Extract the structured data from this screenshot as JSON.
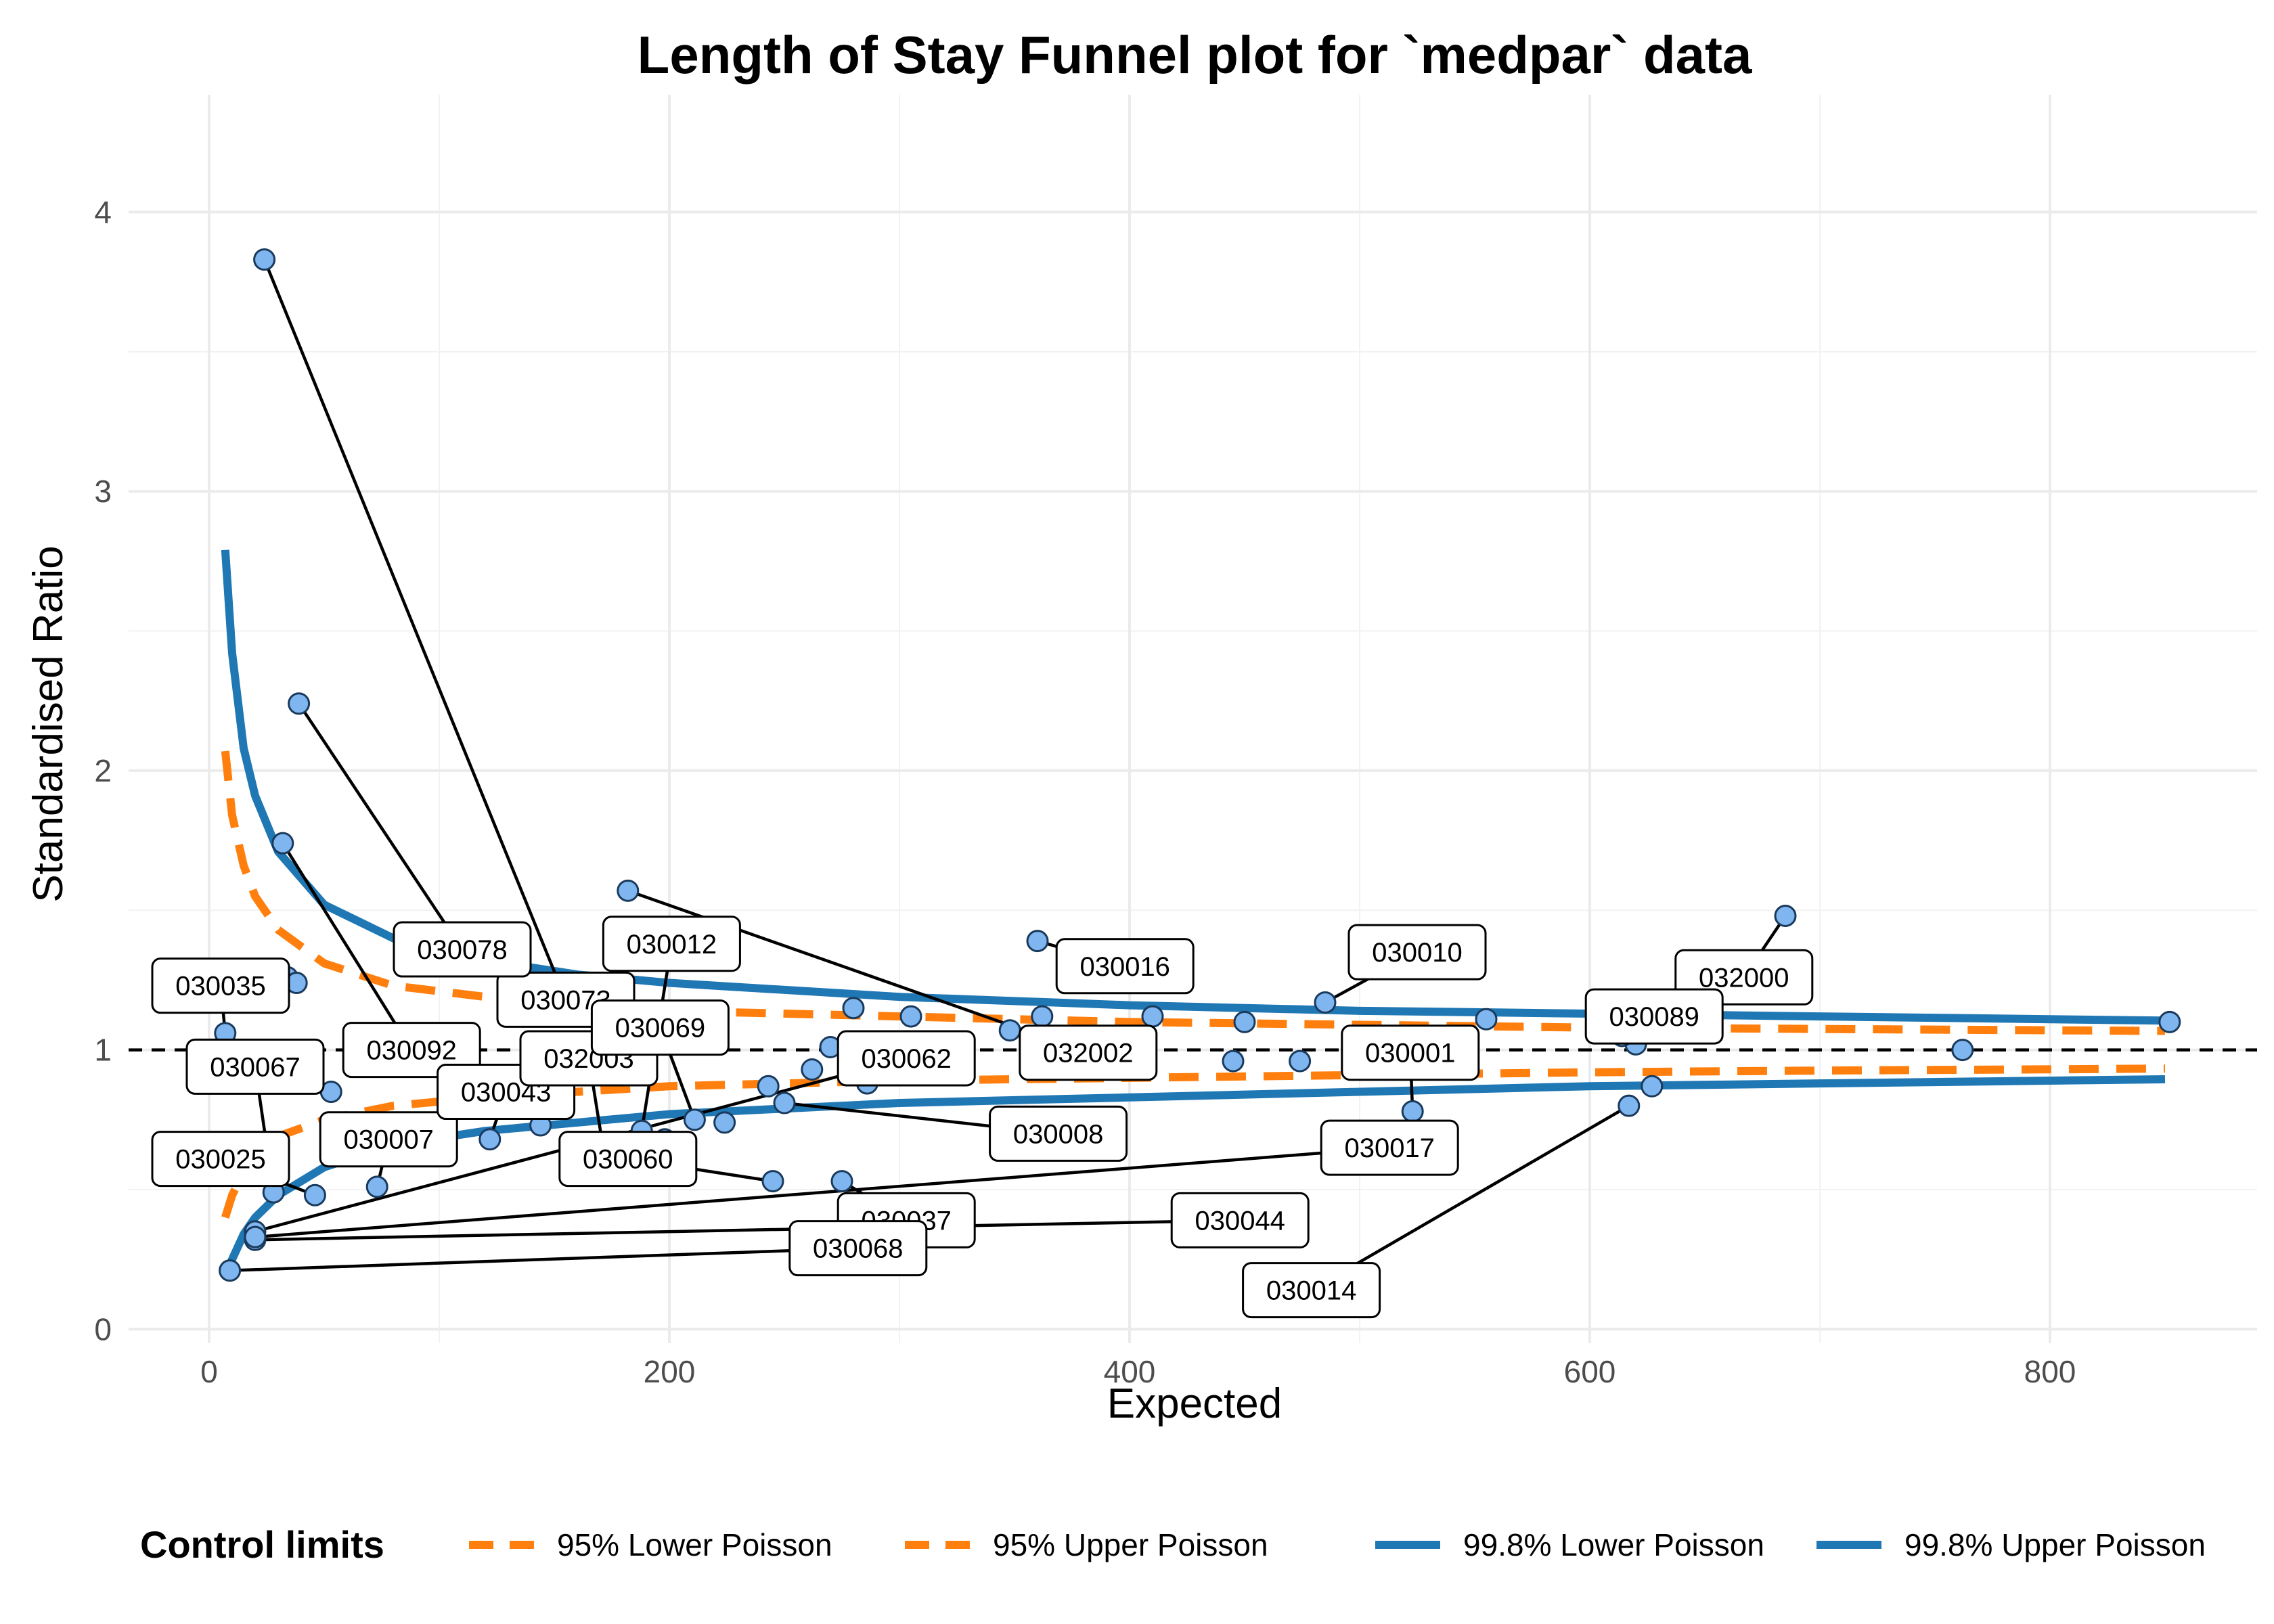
{
  "chart_data": {
    "type": "scatter",
    "title": "Length of Stay Funnel plot for `medpar` data",
    "xlabel": "Expected",
    "ylabel": "Standardised Ratio",
    "xlim": [
      -35,
      890
    ],
    "ylim": [
      -0.05,
      4.42
    ],
    "xticks": [
      0,
      200,
      400,
      600,
      800
    ],
    "yticks": [
      0,
      1,
      2,
      3,
      4
    ],
    "grid": true,
    "target_line": 1,
    "legend": {
      "title": "Control limits",
      "position": "bottom",
      "entries": [
        {
          "label": "95% Lower Poisson",
          "color": "#ff7f0e",
          "dash": "dashed"
        },
        {
          "label": "95% Upper Poisson",
          "color": "#ff7f0e",
          "dash": "dashed"
        },
        {
          "label": "99.8% Lower Poisson",
          "color": "#1f77b4",
          "dash": "solid"
        },
        {
          "label": "99.8% Upper Poisson",
          "color": "#1f77b4",
          "dash": "solid"
        }
      ]
    },
    "colors": {
      "point_fill": "#7fb6f0",
      "point_stroke": "#1a3a5c",
      "limit_95": "#ff7f0e",
      "limit_998": "#1f77b4"
    },
    "limits": [
      {
        "name": "95% Lower Poisson",
        "x": [
          7,
          10,
          15,
          20,
          30,
          50,
          80,
          120,
          160,
          200,
          300,
          400,
          500,
          600,
          700,
          850
        ],
        "y": [
          0.4,
          0.48,
          0.56,
          0.62,
          0.69,
          0.75,
          0.8,
          0.83,
          0.85,
          0.87,
          0.89,
          0.9,
          0.91,
          0.92,
          0.926,
          0.933
        ]
      },
      {
        "name": "95% Upper Poisson",
        "x": [
          7,
          10,
          15,
          20,
          30,
          50,
          80,
          120,
          160,
          200,
          300,
          400,
          500,
          600,
          700,
          850
        ],
        "y": [
          2.07,
          1.84,
          1.66,
          1.55,
          1.43,
          1.31,
          1.23,
          1.19,
          1.16,
          1.14,
          1.12,
          1.1,
          1.09,
          1.08,
          1.075,
          1.068
        ]
      },
      {
        "name": "99.8% Lower Poisson",
        "x": [
          7,
          10,
          15,
          20,
          30,
          50,
          80,
          120,
          160,
          200,
          300,
          400,
          500,
          600,
          700,
          850
        ],
        "y": [
          0.18,
          0.25,
          0.34,
          0.4,
          0.48,
          0.58,
          0.66,
          0.71,
          0.74,
          0.77,
          0.81,
          0.83,
          0.85,
          0.87,
          0.88,
          0.895
        ]
      },
      {
        "name": "99.8% Upper Poisson",
        "x": [
          7,
          10,
          15,
          20,
          30,
          50,
          80,
          120,
          160,
          200,
          300,
          400,
          500,
          600,
          700,
          850
        ],
        "y": [
          2.79,
          2.42,
          2.08,
          1.91,
          1.71,
          1.52,
          1.4,
          1.32,
          1.27,
          1.24,
          1.19,
          1.16,
          1.14,
          1.13,
          1.12,
          1.105
        ]
      }
    ],
    "points": [
      {
        "x": 24,
        "y": 3.83,
        "label": "030073",
        "lx": 155,
        "ly": 1.18
      },
      {
        "x": 39,
        "y": 2.24,
        "label": "030078",
        "lx": 110,
        "ly": 1.36
      },
      {
        "x": 32,
        "y": 1.74,
        "label": "030092",
        "lx": 88,
        "ly": 1.0
      },
      {
        "x": 182,
        "y": 1.57,
        "label": "032002",
        "lx": 382,
        "ly": 0.99
      },
      {
        "x": 360,
        "y": 1.39,
        "label": "030016",
        "lx": 398,
        "ly": 1.3
      },
      {
        "x": 685,
        "y": 1.48,
        "label": "032000",
        "lx": 667,
        "ly": 1.26
      },
      {
        "x": 485,
        "y": 1.17,
        "label": "030010",
        "lx": 525,
        "ly": 1.35
      },
      {
        "x": 620,
        "y": 1.02,
        "label": "030089",
        "lx": 628,
        "ly": 1.12
      },
      {
        "x": 7,
        "y": 1.06,
        "label": "030035",
        "lx": 5,
        "ly": 1.23
      },
      {
        "x": 53,
        "y": 0.85
      },
      {
        "x": 34,
        "y": 1.26
      },
      {
        "x": 38,
        "y": 1.24
      },
      {
        "x": 28,
        "y": 0.49,
        "label": "030067",
        "lx": 20,
        "ly": 0.94
      },
      {
        "x": 46,
        "y": 0.48,
        "label": "030025",
        "lx": 5,
        "ly": 0.61
      },
      {
        "x": 73,
        "y": 0.51,
        "label": "030007",
        "lx": 78,
        "ly": 0.68
      },
      {
        "x": 122,
        "y": 0.68,
        "label": "030043",
        "lx": 129,
        "ly": 0.85
      },
      {
        "x": 144,
        "y": 0.73
      },
      {
        "x": 172,
        "y": 0.61,
        "label": "032003",
        "lx": 165,
        "ly": 0.97
      },
      {
        "x": 188,
        "y": 0.71,
        "label": "030012",
        "lx": 201,
        "ly": 1.38
      },
      {
        "x": 198,
        "y": 0.68
      },
      {
        "x": 211,
        "y": 0.75,
        "label": "030069",
        "lx": 196,
        "ly": 1.08
      },
      {
        "x": 224,
        "y": 0.74
      },
      {
        "x": 243,
        "y": 0.87
      },
      {
        "x": 250,
        "y": 0.81,
        "label": "030008",
        "lx": 369,
        "ly": 0.7
      },
      {
        "x": 262,
        "y": 0.93
      },
      {
        "x": 270,
        "y": 1.01
      },
      {
        "x": 280,
        "y": 1.15
      },
      {
        "x": 286,
        "y": 0.88
      },
      {
        "x": 305,
        "y": 1.12
      },
      {
        "x": 323,
        "y": 0.96
      },
      {
        "x": 348,
        "y": 1.07
      },
      {
        "x": 362,
        "y": 1.12
      },
      {
        "x": 410,
        "y": 1.12
      },
      {
        "x": 445,
        "y": 0.96
      },
      {
        "x": 450,
        "y": 1.1
      },
      {
        "x": 474,
        "y": 0.96
      },
      {
        "x": 523,
        "y": 0.78,
        "label": "030001",
        "lx": 522,
        "ly": 0.99
      },
      {
        "x": 555,
        "y": 1.11
      },
      {
        "x": 614,
        "y": 1.05
      },
      {
        "x": 617,
        "y": 0.8,
        "label": "030014",
        "lx": 479,
        "ly": 0.14
      },
      {
        "x": 627,
        "y": 0.87
      },
      {
        "x": 762,
        "y": 1.0
      },
      {
        "x": 852,
        "y": 1.1
      },
      {
        "x": 245,
        "y": 0.53,
        "label": "030060",
        "lx": 182,
        "ly": 0.61
      },
      {
        "x": 275,
        "y": 0.53,
        "label": "030037",
        "lx": 303,
        "ly": 0.39
      },
      {
        "x": 20,
        "y": 0.35,
        "label": "030062",
        "lx": 303,
        "ly": 0.97
      },
      {
        "x": 20,
        "y": 0.32,
        "label": "030044",
        "lx": 448,
        "ly": 0.39
      },
      {
        "x": 20,
        "y": 0.33,
        "label": "030017",
        "lx": 513,
        "ly": 0.65
      },
      {
        "x": 9,
        "y": 0.21,
        "label": "030068",
        "lx": 282,
        "ly": 0.29
      }
    ]
  }
}
